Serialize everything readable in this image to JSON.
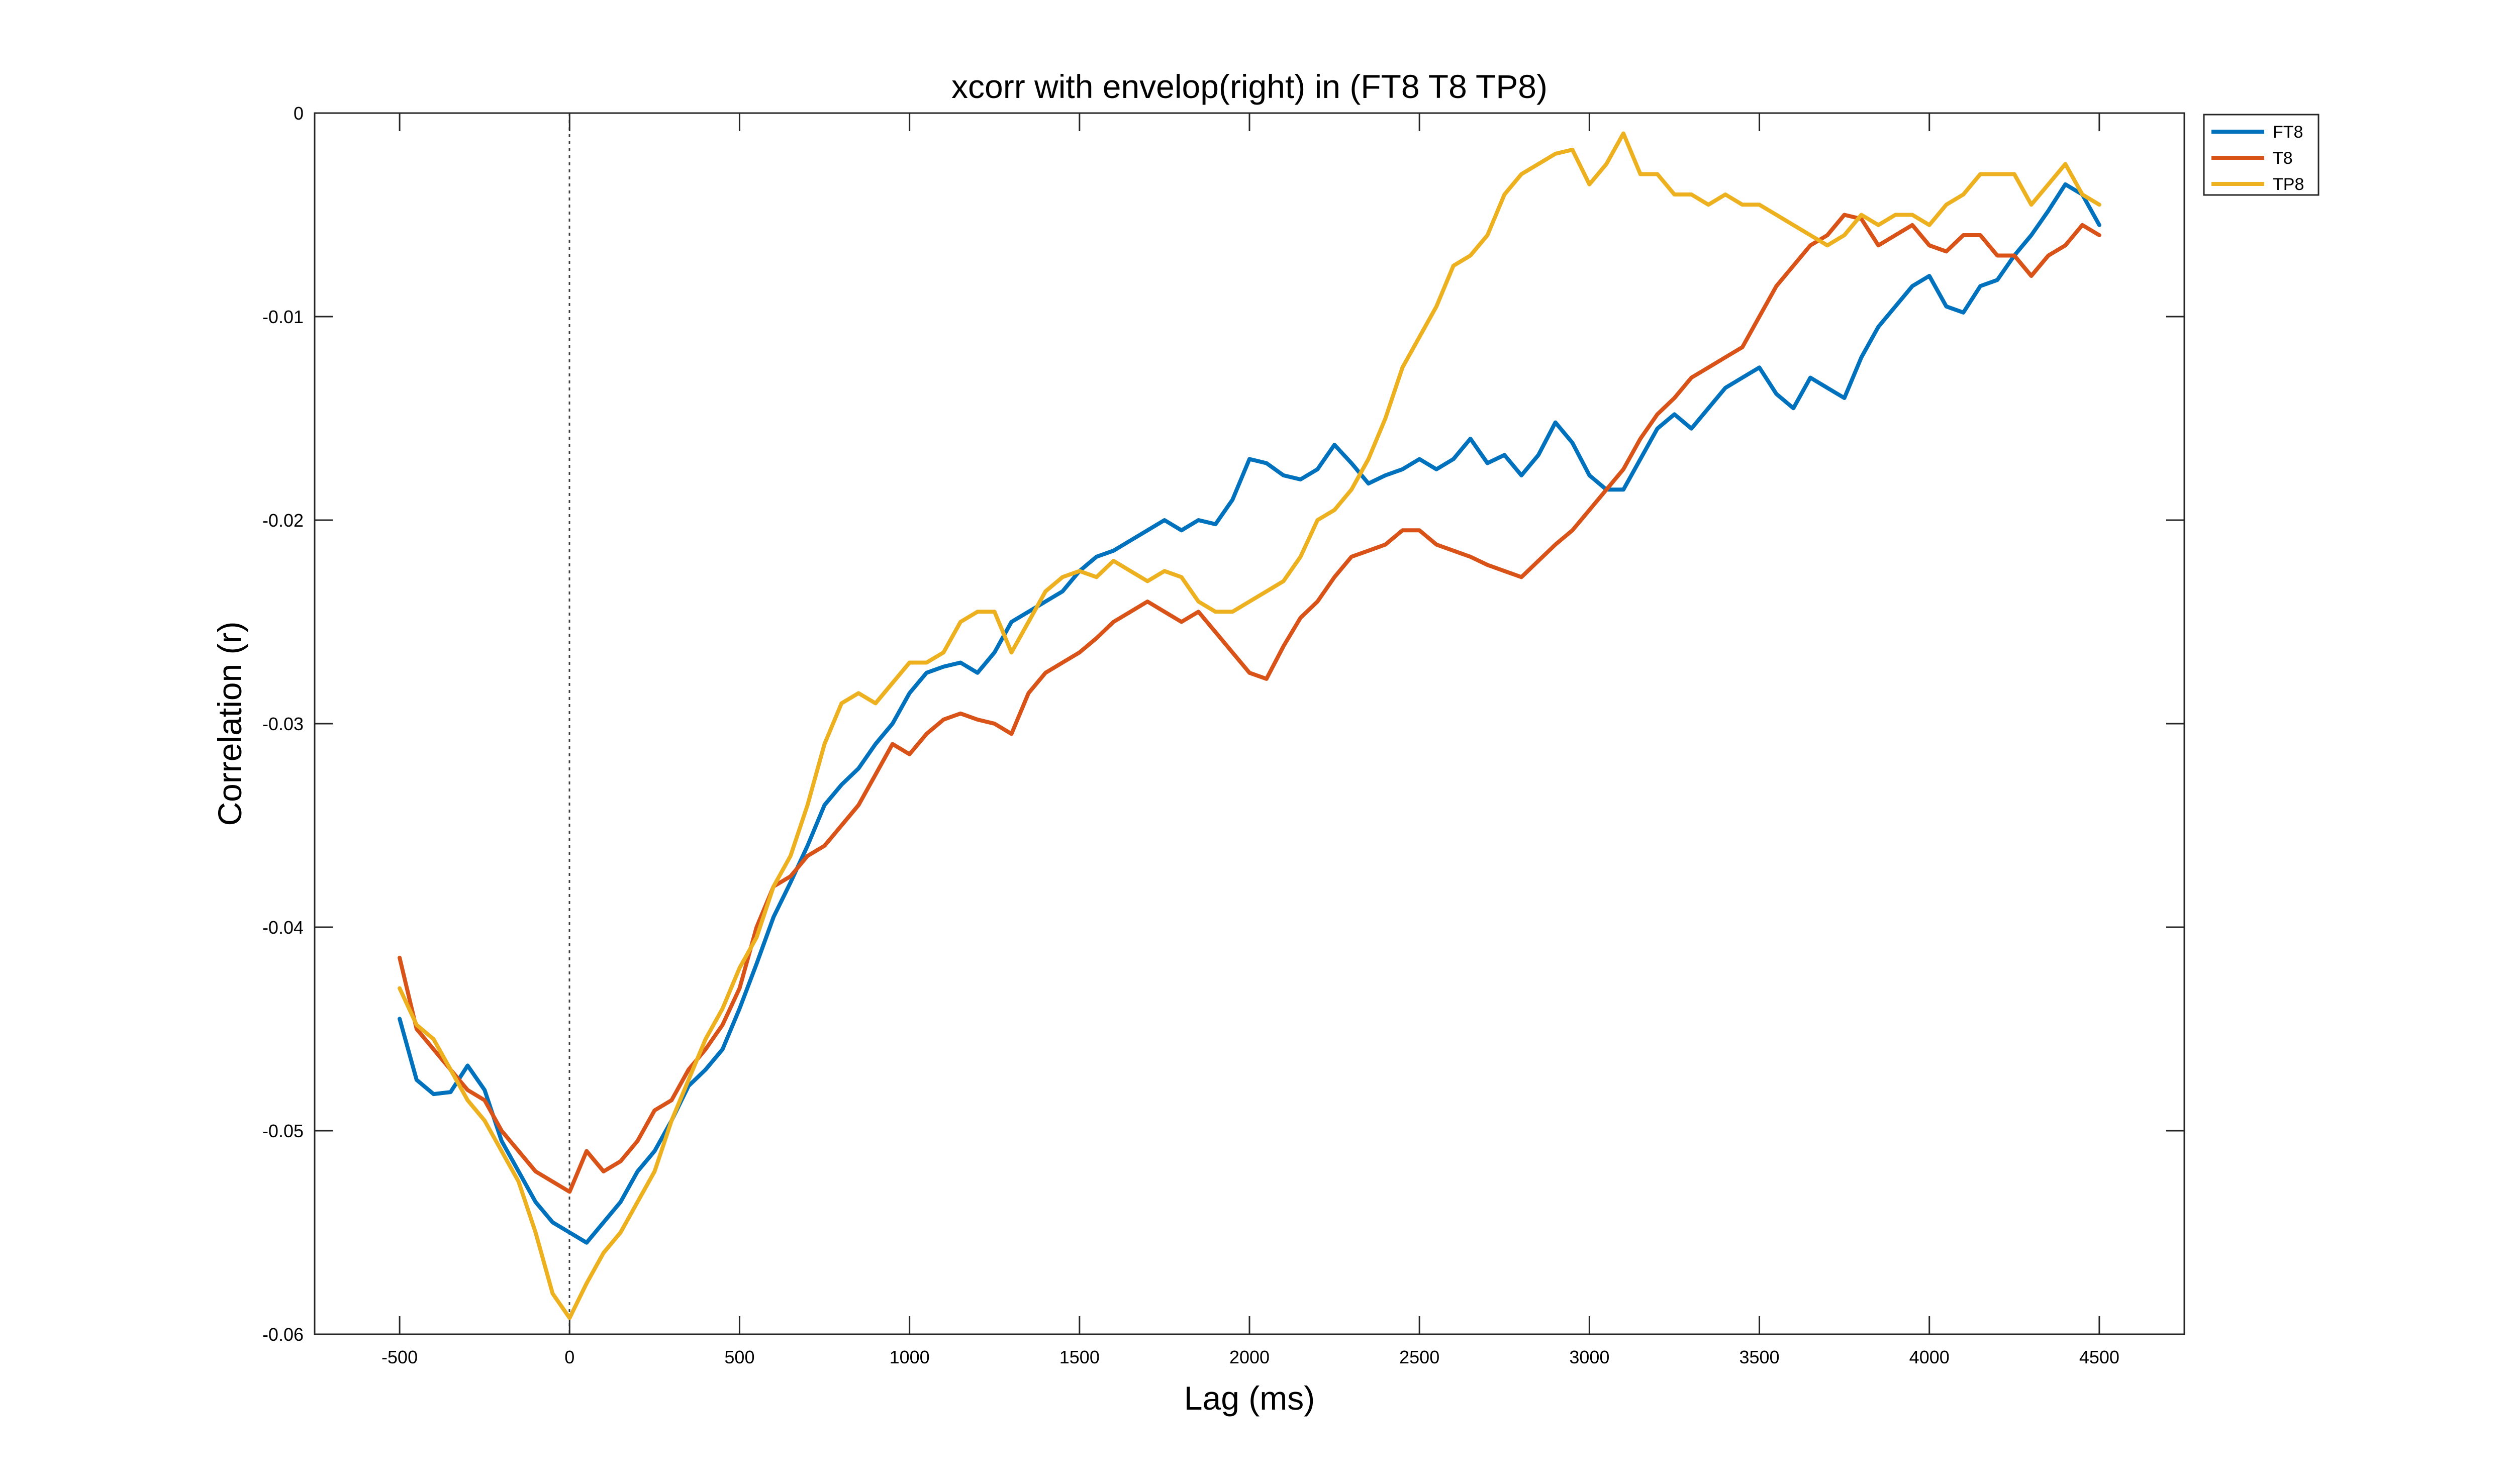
{
  "chart_data": {
    "type": "line",
    "title": "xcorr with envelop(right) in (FT8 T8 TP8)",
    "xlabel": "Lag (ms)",
    "ylabel": "Correlation (r)",
    "xlim": [
      -750,
      4750
    ],
    "ylim": [
      -0.06,
      0
    ],
    "x_ticks": [
      -500,
      0,
      500,
      1000,
      1500,
      2000,
      2500,
      3000,
      3500,
      4000,
      4500
    ],
    "x_tick_labels": [
      "-500",
      "0",
      "500",
      "1000",
      "1500",
      "2000",
      "2500",
      "3000",
      "3500",
      "4000",
      "4500"
    ],
    "y_ticks": [
      0,
      -0.01,
      -0.02,
      -0.03,
      -0.04,
      -0.05,
      -0.06
    ],
    "y_tick_labels": [
      "0",
      "-0.01",
      "-0.02",
      "-0.03",
      "-0.04",
      "-0.05",
      "-0.06"
    ],
    "grid": false,
    "legend_position": "outside top-right",
    "reference_line_x": 0,
    "x": [
      -500,
      -450,
      -400,
      -350,
      -300,
      -250,
      -200,
      -150,
      -100,
      -50,
      0,
      50,
      100,
      150,
      200,
      250,
      300,
      350,
      400,
      450,
      500,
      550,
      600,
      650,
      700,
      750,
      800,
      850,
      900,
      950,
      1000,
      1050,
      1100,
      1150,
      1200,
      1250,
      1300,
      1350,
      1400,
      1450,
      1500,
      1550,
      1600,
      1650,
      1700,
      1750,
      1800,
      1850,
      1900,
      1950,
      2000,
      2050,
      2100,
      2150,
      2200,
      2250,
      2300,
      2350,
      2400,
      2450,
      2500,
      2550,
      2600,
      2650,
      2700,
      2750,
      2800,
      2850,
      2900,
      2950,
      3000,
      3050,
      3100,
      3150,
      3200,
      3250,
      3300,
      3350,
      3400,
      3450,
      3500,
      3550,
      3600,
      3650,
      3700,
      3750,
      3800,
      3850,
      3900,
      3950,
      4000,
      4050,
      4100,
      4150,
      4200,
      4250,
      4300,
      4350,
      4400,
      4450,
      4500
    ],
    "series": [
      {
        "name": "FT8",
        "color": "#0072BD",
        "values": [
          -0.0445,
          -0.0475,
          -0.0482,
          -0.0481,
          -0.0468,
          -0.048,
          -0.0505,
          -0.052,
          -0.0535,
          -0.0545,
          -0.055,
          -0.0555,
          -0.0545,
          -0.0535,
          -0.052,
          -0.051,
          -0.0495,
          -0.0478,
          -0.047,
          -0.046,
          -0.044,
          -0.0418,
          -0.0395,
          -0.0378,
          -0.036,
          -0.034,
          -0.033,
          -0.0322,
          -0.031,
          -0.03,
          -0.0285,
          -0.0275,
          -0.0272,
          -0.027,
          -0.0275,
          -0.0265,
          -0.025,
          -0.0245,
          -0.024,
          -0.0235,
          -0.0225,
          -0.0218,
          -0.0215,
          -0.021,
          -0.0205,
          -0.02,
          -0.0205,
          -0.02,
          -0.0202,
          -0.019,
          -0.017,
          -0.0172,
          -0.0178,
          -0.018,
          -0.0175,
          -0.0163,
          -0.0172,
          -0.0182,
          -0.0178,
          -0.0175,
          -0.017,
          -0.0175,
          -0.017,
          -0.016,
          -0.0172,
          -0.0168,
          -0.0178,
          -0.0168,
          -0.0152,
          -0.0162,
          -0.0178,
          -0.0185,
          -0.0185,
          -0.017,
          -0.0155,
          -0.0148,
          -0.0155,
          -0.0145,
          -0.0135,
          -0.013,
          -0.0125,
          -0.0138,
          -0.0145,
          -0.013,
          -0.0135,
          -0.014,
          -0.012,
          -0.0105,
          -0.0095,
          -0.0085,
          -0.008,
          -0.0095,
          -0.0098,
          -0.0085,
          -0.0082,
          -0.007,
          -0.006,
          -0.0048,
          -0.0035,
          -0.004,
          -0.0055
        ]
      },
      {
        "name": "T8",
        "color": "#D95319",
        "values": [
          -0.0415,
          -0.045,
          -0.046,
          -0.047,
          -0.048,
          -0.0485,
          -0.05,
          -0.051,
          -0.052,
          -0.0525,
          -0.053,
          -0.051,
          -0.052,
          -0.0515,
          -0.0505,
          -0.049,
          -0.0485,
          -0.047,
          -0.046,
          -0.0448,
          -0.043,
          -0.04,
          -0.038,
          -0.0375,
          -0.0365,
          -0.036,
          -0.035,
          -0.034,
          -0.0325,
          -0.031,
          -0.0315,
          -0.0305,
          -0.0298,
          -0.0295,
          -0.0298,
          -0.03,
          -0.0305,
          -0.0285,
          -0.0275,
          -0.027,
          -0.0265,
          -0.0258,
          -0.025,
          -0.0245,
          -0.024,
          -0.0245,
          -0.025,
          -0.0245,
          -0.0255,
          -0.0265,
          -0.0275,
          -0.0278,
          -0.0262,
          -0.0248,
          -0.024,
          -0.0228,
          -0.0218,
          -0.0215,
          -0.0212,
          -0.0205,
          -0.0205,
          -0.0212,
          -0.0215,
          -0.0218,
          -0.0222,
          -0.0225,
          -0.0228,
          -0.022,
          -0.0212,
          -0.0205,
          -0.0195,
          -0.0185,
          -0.0175,
          -0.016,
          -0.0148,
          -0.014,
          -0.013,
          -0.0125,
          -0.012,
          -0.0115,
          -0.01,
          -0.0085,
          -0.0075,
          -0.0065,
          -0.006,
          -0.005,
          -0.0052,
          -0.0065,
          -0.006,
          -0.0055,
          -0.0065,
          -0.0068,
          -0.006,
          -0.006,
          -0.007,
          -0.007,
          -0.008,
          -0.007,
          -0.0065,
          -0.0055,
          -0.006
        ]
      },
      {
        "name": "TP8",
        "color": "#EDB120",
        "values": [
          -0.043,
          -0.0448,
          -0.0455,
          -0.047,
          -0.0485,
          -0.0495,
          -0.051,
          -0.0525,
          -0.055,
          -0.058,
          -0.0592,
          -0.0575,
          -0.056,
          -0.055,
          -0.0535,
          -0.052,
          -0.0495,
          -0.0475,
          -0.0455,
          -0.044,
          -0.042,
          -0.0405,
          -0.038,
          -0.0365,
          -0.034,
          -0.031,
          -0.029,
          -0.0285,
          -0.029,
          -0.028,
          -0.027,
          -0.027,
          -0.0265,
          -0.025,
          -0.0245,
          -0.0245,
          -0.0265,
          -0.025,
          -0.0235,
          -0.0228,
          -0.0225,
          -0.0228,
          -0.022,
          -0.0225,
          -0.023,
          -0.0225,
          -0.0228,
          -0.024,
          -0.0245,
          -0.0245,
          -0.024,
          -0.0235,
          -0.023,
          -0.0218,
          -0.02,
          -0.0195,
          -0.0185,
          -0.017,
          -0.015,
          -0.0125,
          -0.011,
          -0.0095,
          -0.0075,
          -0.007,
          -0.006,
          -0.004,
          -0.003,
          -0.0025,
          -0.002,
          -0.0018,
          -0.0035,
          -0.0025,
          -0.001,
          -0.003,
          -0.003,
          -0.004,
          -0.004,
          -0.0045,
          -0.004,
          -0.0045,
          -0.0045,
          -0.005,
          -0.0055,
          -0.006,
          -0.0065,
          -0.006,
          -0.005,
          -0.0055,
          -0.005,
          -0.005,
          -0.0055,
          -0.0045,
          -0.004,
          -0.003,
          -0.003,
          -0.003,
          -0.0045,
          -0.0035,
          -0.0025,
          -0.004,
          -0.0045
        ]
      }
    ]
  }
}
